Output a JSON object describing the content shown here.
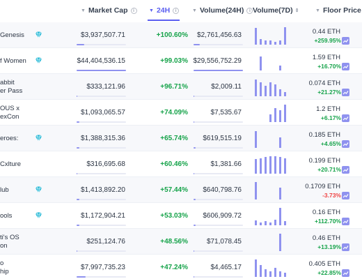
{
  "header": {
    "market_cap": "Market Cap",
    "change_24h": "24H",
    "volume_24h": "Volume(24H)",
    "volume_7d": "Volume(7D)",
    "floor_price": "Floor Price",
    "info_glyph": "i"
  },
  "rows": [
    {
      "name1": "Genesis",
      "name2": "",
      "gem": true,
      "market_cap": "$3,937,507.71",
      "mcap_level": 0.16,
      "change": "+100.60%",
      "volume": "$2,761,456.63",
      "vol_level": 0.12,
      "spark": [
        0.85,
        0.3,
        0.2,
        0.2,
        0.15,
        0.2,
        0.9
      ],
      "floor": "0.44 ETH",
      "floor_change": "+259.95%",
      "floor_negative": false
    },
    {
      "name1": "f Women",
      "name2": "",
      "gem": true,
      "market_cap": "$44,404,536.15",
      "mcap_level": 1.0,
      "change": "+99.03%",
      "volume": "$29,556,752.29",
      "vol_level": 1.0,
      "spark": [
        0,
        0.7,
        0,
        0,
        0,
        0.25,
        0
      ],
      "floor": "1.59 ETH",
      "floor_change": "+16.70%",
      "floor_negative": false
    },
    {
      "name1": "abbit",
      "name2": "er Pass",
      "gem": false,
      "market_cap": "$333,121.96",
      "mcap_level": 0.02,
      "change": "+96.71%",
      "volume": "$2,009.11",
      "vol_level": 0.01,
      "spark": [
        0.85,
        0.7,
        0.55,
        0.7,
        0.6,
        0.35,
        0.2
      ],
      "floor": "0.074 ETH",
      "floor_change": "+21.27%",
      "floor_negative": false
    },
    {
      "name1": "OUS x",
      "name2": "exCon",
      "gem": false,
      "market_cap": "$1,093,065.57",
      "mcap_level": 0.05,
      "change": "+74.09%",
      "volume": "$7,535.67",
      "vol_level": 0.01,
      "spark": [
        0,
        0,
        0,
        0.4,
        0.7,
        0.6,
        0.9
      ],
      "floor": "1.2 ETH",
      "floor_change": "+6.17%",
      "floor_negative": false
    },
    {
      "name1": "eroes:",
      "name2": "",
      "gem": true,
      "market_cap": "$1,388,315.36",
      "mcap_level": 0.06,
      "change": "+65.74%",
      "volume": "$619,515.19",
      "vol_level": 0.04,
      "spark": [
        0.85,
        0,
        0,
        0,
        0,
        0.55,
        0
      ],
      "floor": "0.185 ETH",
      "floor_change": "+4.65%",
      "floor_negative": false
    },
    {
      "name1": "Cxlture",
      "name2": "",
      "gem": false,
      "market_cap": "$316,695.68",
      "mcap_level": 0.02,
      "change": "+60.46%",
      "volume": "$1,381.66",
      "vol_level": 0.01,
      "spark": [
        0.75,
        0.8,
        0.85,
        0.9,
        0.9,
        0.85,
        0.8
      ],
      "floor": "0.199 ETH",
      "floor_change": "+20.71%",
      "floor_negative": false
    },
    {
      "name1": "lub",
      "name2": "",
      "gem": true,
      "market_cap": "$1,413,892.20",
      "mcap_level": 0.06,
      "change": "+57.44%",
      "volume": "$640,798.76",
      "vol_level": 0.04,
      "spark": [
        0.9,
        0,
        0,
        0,
        0,
        0.6,
        0
      ],
      "floor": "0.1709 ETH",
      "floor_change": "-3.73%",
      "floor_negative": true
    },
    {
      "name1": "ools",
      "name2": "",
      "gem": true,
      "market_cap": "$1,172,904.21",
      "mcap_level": 0.05,
      "change": "+53.03%",
      "volume": "$606,909.72",
      "vol_level": 0.04,
      "spark": [
        0.25,
        0.15,
        0.2,
        0.15,
        0.3,
        0.9,
        0.2
      ],
      "floor": "0.16 ETH",
      "floor_change": "+112.70%",
      "floor_negative": false
    },
    {
      "name1": "ti's OS",
      "name2": "on",
      "gem": false,
      "market_cap": "$251,124.76",
      "mcap_level": 0.02,
      "change": "+48.56%",
      "volume": "$71,078.45",
      "vol_level": 0.01,
      "spark": [
        0,
        0,
        0,
        0,
        0,
        0.9,
        0
      ],
      "floor": "0.46 ETH",
      "floor_change": "+13.19%",
      "floor_negative": false
    },
    {
      "name1": "o",
      "name2": "hip",
      "gem": false,
      "market_cap": "$7,997,735.23",
      "mcap_level": 0.18,
      "change": "+47.24%",
      "volume": "$4,465.17",
      "vol_level": 0.01,
      "spark": [
        0.9,
        0.6,
        0.4,
        0.3,
        0.45,
        0.3,
        0.2
      ],
      "floor": "0.405 ETH",
      "floor_change": "+22.85%",
      "floor_negative": false
    }
  ],
  "colors": {
    "accent": "#5b5ff0",
    "positive": "#16a34a",
    "negative": "#ef4444",
    "bar": "#8f92ef",
    "gem": "#22b8d6"
  },
  "icons": {
    "gem": "diamond-icon",
    "trend": "trend-chart-icon",
    "sort": "sort-arrow-icon",
    "info": "info-icon"
  }
}
